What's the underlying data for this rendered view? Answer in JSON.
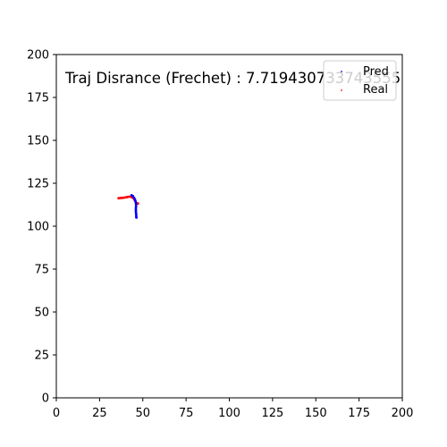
{
  "chart_data": {
    "type": "scatter",
    "title": "",
    "xlabel": "",
    "ylabel": "",
    "xlim": [
      0,
      200
    ],
    "ylim": [
      0,
      200
    ],
    "x_ticks": [
      0,
      25,
      50,
      75,
      100,
      125,
      150,
      175,
      200
    ],
    "y_ticks": [
      0,
      25,
      50,
      75,
      100,
      125,
      150,
      175,
      200
    ],
    "grid": false,
    "legend_position": "upper right",
    "annotation": "Traj Disrance (Frechet) : 7.719430733743555",
    "series": [
      {
        "name": "Pred",
        "color": "#0000ff",
        "marker_size": "small",
        "points": [
          [
            43.5,
            118.0
          ],
          [
            44.3,
            117.5
          ],
          [
            45.0,
            116.5
          ],
          [
            45.5,
            115.5
          ],
          [
            45.8,
            114.5
          ],
          [
            46.0,
            113.5
          ],
          [
            46.1,
            112.5
          ],
          [
            46.1,
            111.5
          ],
          [
            46.0,
            110.5
          ],
          [
            46.0,
            109.5
          ],
          [
            46.0,
            108.5
          ],
          [
            46.1,
            107.5
          ],
          [
            46.2,
            106.5
          ],
          [
            46.2,
            105.5
          ],
          [
            46.3,
            105.0
          ]
        ]
      },
      {
        "name": "Real",
        "color": "#ff0000",
        "marker_size": "small",
        "points": [
          [
            36.0,
            116.3
          ],
          [
            37.0,
            116.4
          ],
          [
            38.0,
            116.5
          ],
          [
            39.0,
            116.6
          ],
          [
            40.0,
            116.8
          ],
          [
            41.0,
            117.0
          ],
          [
            42.0,
            117.2
          ],
          [
            43.0,
            117.1
          ],
          [
            44.0,
            116.7
          ],
          [
            44.8,
            116.0
          ],
          [
            45.4,
            115.0
          ],
          [
            45.9,
            114.0
          ],
          [
            46.5,
            113.4
          ],
          [
            47.2,
            113.2
          ]
        ]
      }
    ]
  }
}
